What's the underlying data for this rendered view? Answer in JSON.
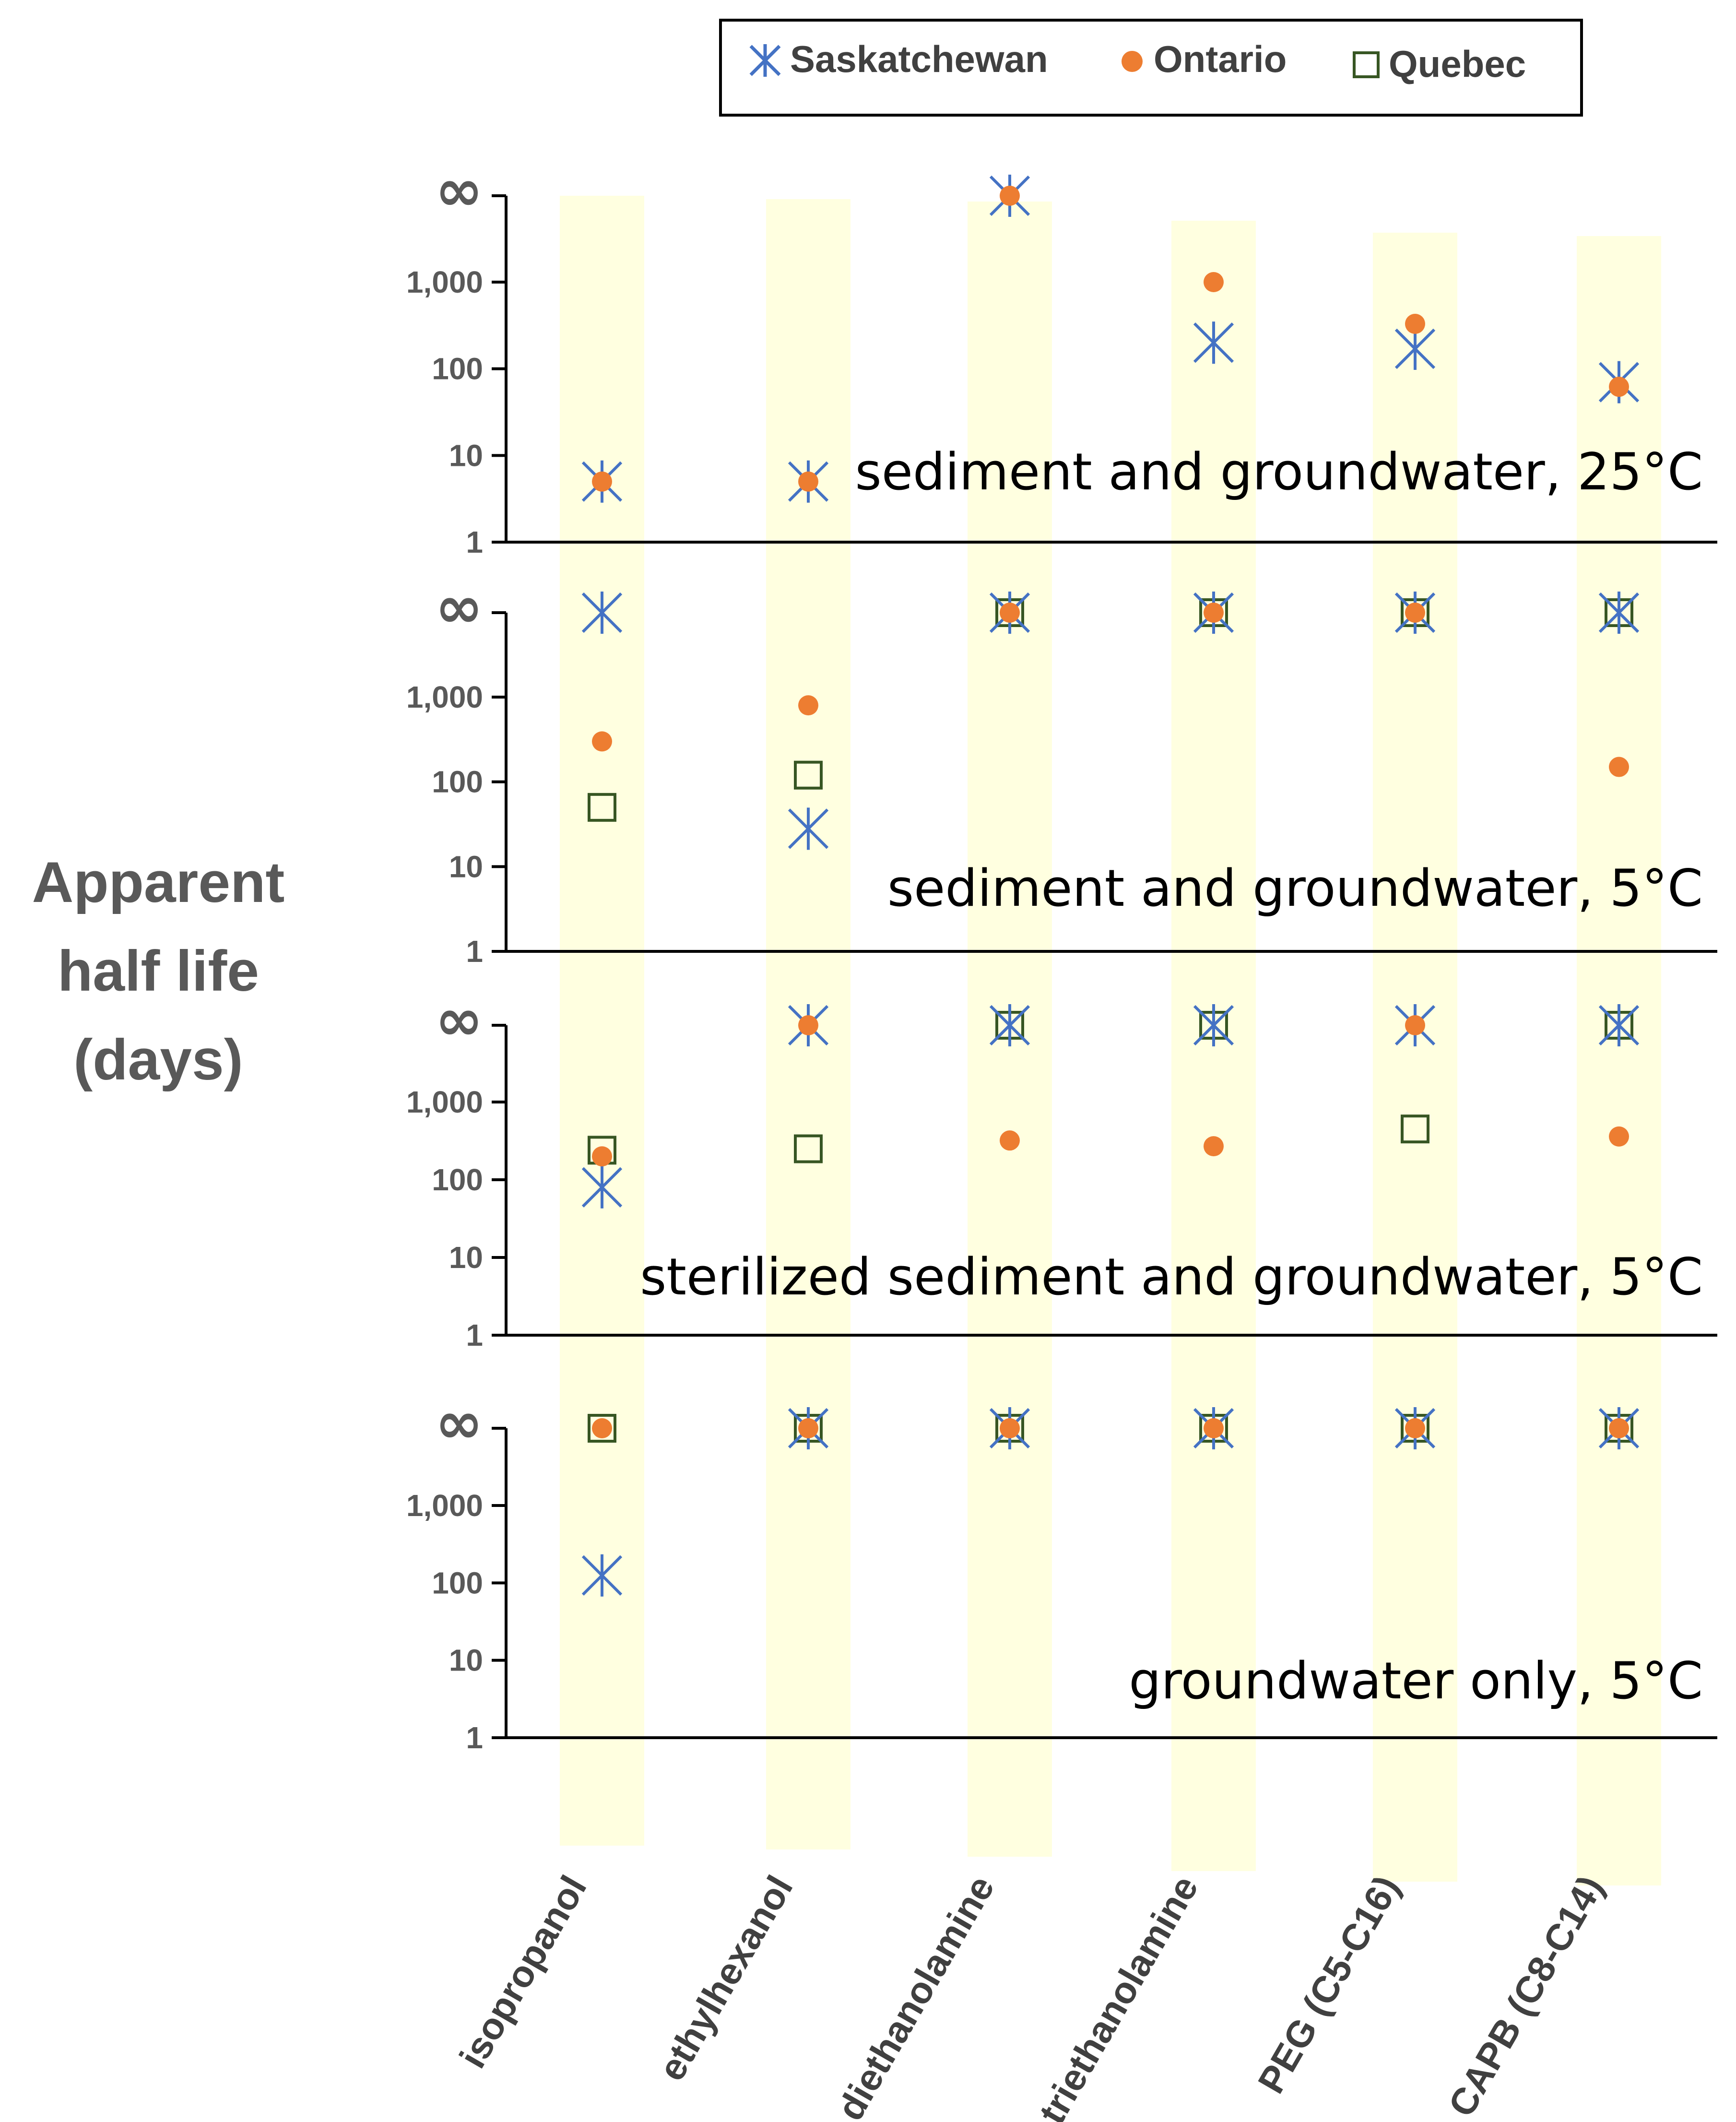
{
  "chart_data": {
    "type": "scatter",
    "ylabel_lines": [
      "Apparent",
      "half life",
      "(days)"
    ],
    "yscale": "log",
    "ylim": [
      1,
      "∞"
    ],
    "y_ticks": [
      "1",
      "10",
      "100",
      "1,000",
      "∞"
    ],
    "categories": [
      "isopropanol",
      "ethylhexanol",
      "diethanolamine",
      "triethanolamine",
      "PEG (C5-C16)",
      "CAPB (C8-C14)"
    ],
    "legend": {
      "placement": "top-right",
      "entries": [
        {
          "name": "Saskatchewan",
          "marker": "asterisk",
          "color": "#4472C4"
        },
        {
          "name": "Ontario",
          "marker": "circle",
          "color": "#ED7D31"
        },
        {
          "name": "Quebec",
          "marker": "square",
          "color": "#375623"
        }
      ]
    },
    "infinity_symbol": "∞",
    "highlight_color": "#FFFFE0",
    "panels": [
      {
        "label": "sediment and groundwater, 25°C",
        "series": {
          "Saskatchewan": [
            5,
            5,
            "inf",
            200,
            170,
            70
          ],
          "Ontario": [
            5,
            5,
            "inf",
            1000,
            330,
            62
          ],
          "Quebec": [
            null,
            null,
            null,
            null,
            null,
            null
          ]
        }
      },
      {
        "label": "sediment and groundwater, 5°C",
        "series": {
          "Saskatchewan": [
            "inf",
            28,
            "inf",
            "inf",
            "inf",
            "inf"
          ],
          "Ontario": [
            300,
            800,
            "inf",
            "inf",
            "inf",
            150
          ],
          "Quebec": [
            50,
            120,
            "inf",
            "inf",
            "inf",
            "inf"
          ]
        }
      },
      {
        "label": "sterilized sediment and groundwater, 5°C",
        "series": {
          "Saskatchewan": [
            80,
            "inf",
            "inf",
            "inf",
            "inf",
            "inf"
          ],
          "Ontario": [
            200,
            "inf",
            320,
            270,
            "inf",
            360
          ],
          "Quebec": [
            240,
            250,
            "inf",
            "inf",
            450,
            "inf"
          ]
        }
      },
      {
        "label": "groundwater only, 5°C",
        "series": {
          "Saskatchewan": [
            125,
            "inf",
            "inf",
            "inf",
            "inf",
            "inf"
          ],
          "Ontario": [
            "inf",
            "inf",
            "inf",
            "inf",
            "inf",
            "inf"
          ],
          "Quebec": [
            "inf",
            "inf",
            "inf",
            "inf",
            "inf",
            "inf"
          ]
        }
      }
    ]
  }
}
